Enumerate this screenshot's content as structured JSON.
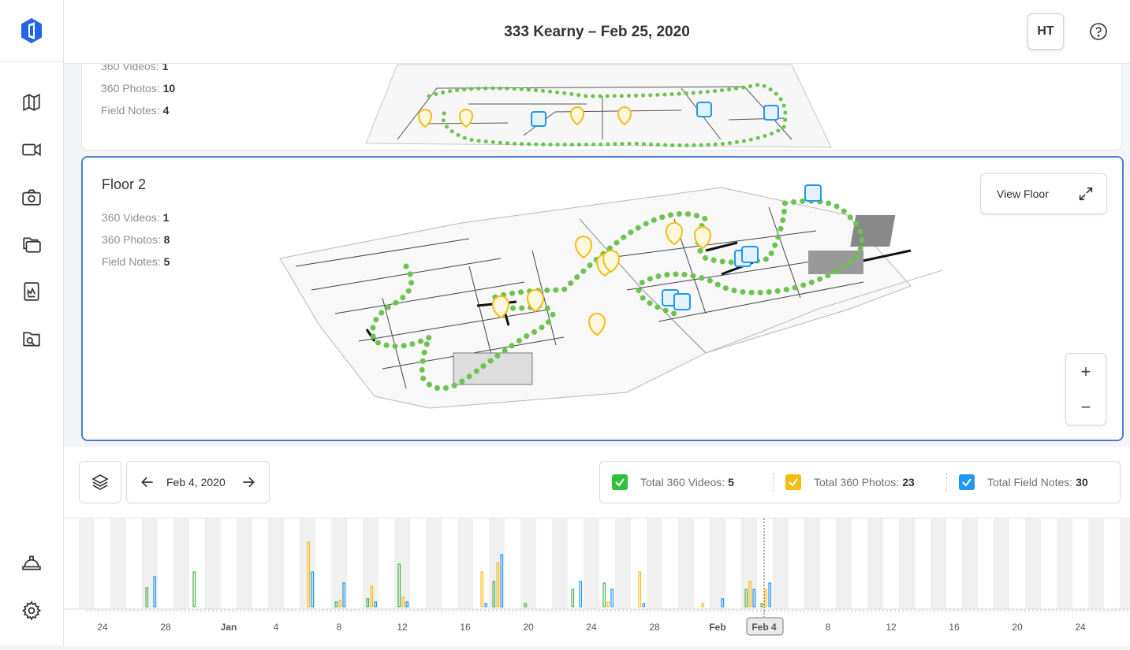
{
  "header": {
    "title": "333 Kearny – Feb 25, 2020",
    "avatar": "HT"
  },
  "sidebar": {
    "items": [
      "map-icon",
      "video-icon",
      "camera-icon",
      "gallery-icon",
      "report-icon",
      "search-plans-icon"
    ],
    "bottom": [
      "hardhat-icon",
      "gear-icon"
    ]
  },
  "floors": [
    {
      "videos_label": "360 Videos:",
      "videos": "1",
      "photos_label": "360 Photos:",
      "photos": "10",
      "notes_label": "Field Notes:",
      "notes": "4"
    },
    {
      "name": "Floor 2",
      "videos_label": "360 Videos:",
      "videos": "1",
      "photos_label": "360 Photos:",
      "photos": "8",
      "notes_label": "Field Notes:",
      "notes": "5",
      "view_label": "View Floor"
    }
  ],
  "zoom": {
    "in": "+",
    "out": "−"
  },
  "date_nav": {
    "date": "Feb 4, 2020"
  },
  "totals": [
    {
      "label": "Total 360 Videos:",
      "value": "5",
      "color": "#2ec23a"
    },
    {
      "label": "Total 360 Photos:",
      "value": "23",
      "color": "#f5bd14"
    },
    {
      "label": "Total Field Notes:",
      "value": "30",
      "color": "#2196f3"
    }
  ],
  "timeline": {
    "tick_labels": [
      "24",
      "28",
      "Jan",
      "4",
      "8",
      "12",
      "16",
      "20",
      "24",
      "28",
      "Feb",
      "Feb 4",
      "8",
      "12",
      "16",
      "20",
      "24"
    ],
    "selected": "Feb 4",
    "series_colors": {
      "videos": "#4caf50",
      "photos": "#f5bd14",
      "notes": "#2196f3"
    }
  }
}
